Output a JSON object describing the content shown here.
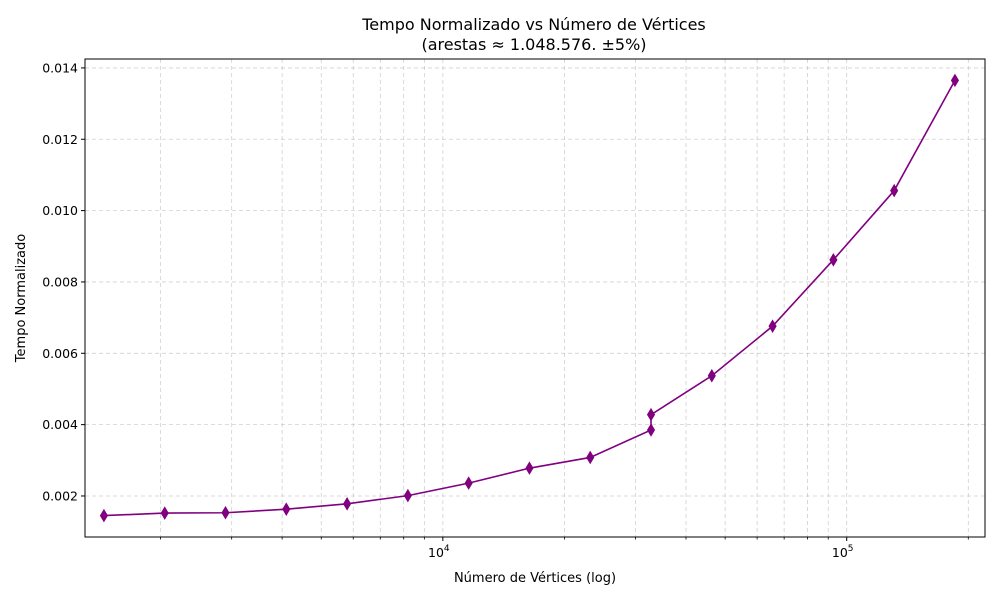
{
  "chart_data": {
    "type": "line",
    "title": "Tempo Normalizado vs Número de Vértices",
    "subtitle": "(arestas ≈ 1.048.576. ±5%)",
    "xlabel": "Número de Vértices (log)",
    "ylabel": "Tempo Normalizado",
    "x_scale": "log",
    "xlim": [
      1300,
      220000
    ],
    "ylim": [
      0.00085,
      0.01425
    ],
    "grid": true,
    "line_color": "#800080",
    "marker": "thin_diamond",
    "x_major_ticks": [
      {
        "value": 10000,
        "base": "10",
        "exp": "4"
      },
      {
        "value": 100000,
        "base": "10",
        "exp": "5"
      }
    ],
    "x_minor_ticks": [
      2000,
      3000,
      4000,
      5000,
      6000,
      7000,
      8000,
      9000,
      20000,
      30000,
      40000,
      50000,
      60000,
      70000,
      80000,
      90000,
      200000
    ],
    "y_ticks": [
      {
        "value": 0.002,
        "label": "0.002"
      },
      {
        "value": 0.004,
        "label": "0.004"
      },
      {
        "value": 0.006,
        "label": "0.006"
      },
      {
        "value": 0.008,
        "label": "0.008"
      },
      {
        "value": 0.01,
        "label": "0.010"
      },
      {
        "value": 0.012,
        "label": "0.012"
      },
      {
        "value": 0.014,
        "label": "0.014"
      }
    ],
    "series": [
      {
        "x": [
          1448,
          2048,
          2896,
          4096,
          5793,
          8192,
          11585,
          16384,
          23170,
          32768,
          32768,
          46341,
          65536,
          92682,
          131072,
          185364
        ],
        "y": [
          0.00145,
          0.00152,
          0.00153,
          0.00163,
          0.00178,
          0.00201,
          0.00236,
          0.00278,
          0.00308,
          0.00385,
          0.00428,
          0.00537,
          0.00676,
          0.00862,
          0.01056,
          0.01365
        ]
      }
    ]
  }
}
